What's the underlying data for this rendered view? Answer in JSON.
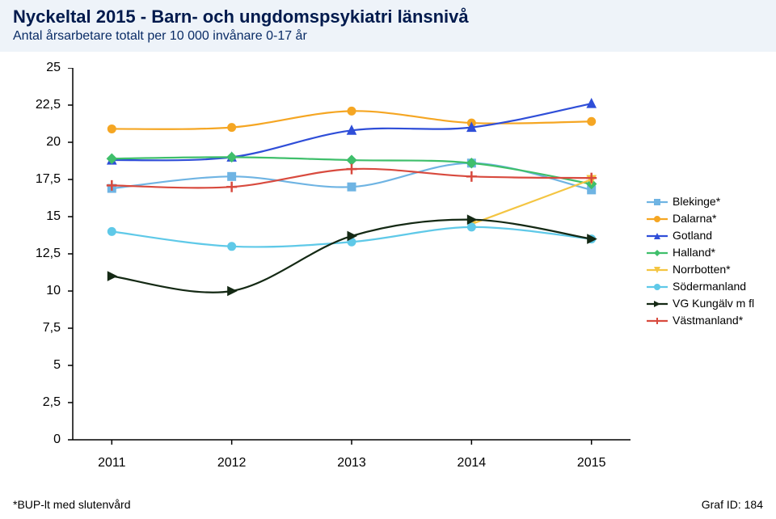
{
  "header": {
    "title": "Nyckeltal 2015 - Barn- och ungdomspsykiatri länsnivå",
    "subtitle": "Antal årsarbetare totalt per 10 000 invånare 0-17 år"
  },
  "chart": {
    "type": "line",
    "background_color": "#ffffff",
    "axis_color": "#000000",
    "tick_length": 6,
    "x": {
      "categories": [
        "2011",
        "2012",
        "2013",
        "2014",
        "2015"
      ],
      "label_fontsize": 16
    },
    "y": {
      "min": 0,
      "max": 25,
      "tick_step": 2.5,
      "labels": [
        "0",
        "2,5",
        "5",
        "7,5",
        "10",
        "12,5",
        "15",
        "17,5",
        "20",
        "22,5",
        "25"
      ],
      "label_fontsize": 16
    },
    "series": [
      {
        "name": "Blekinge*",
        "color": "#6fb4e3",
        "marker": "square",
        "values": [
          16.9,
          17.7,
          17.0,
          18.6,
          16.8
        ]
      },
      {
        "name": "Dalarna*",
        "color": "#f5a623",
        "marker": "circle",
        "values": [
          20.9,
          21.0,
          22.1,
          21.3,
          21.4
        ]
      },
      {
        "name": "Gotland",
        "color": "#2f4ed8",
        "marker": "triangle",
        "values": [
          18.8,
          19.0,
          20.8,
          21.0,
          22.6
        ]
      },
      {
        "name": "Halland*",
        "color": "#3fbf6b",
        "marker": "diamond",
        "values": [
          18.9,
          19.0,
          18.8,
          18.6,
          17.2
        ]
      },
      {
        "name": "Norrbotten*",
        "color": "#f4c542",
        "marker": "tri-down",
        "values": [
          null,
          null,
          null,
          14.5,
          17.5
        ]
      },
      {
        "name": "Södermanland",
        "color": "#5fc9e8",
        "marker": "circle",
        "values": [
          14.0,
          13.0,
          13.3,
          14.3,
          13.5
        ]
      },
      {
        "name": "VG Kungälv m fl",
        "color": "#142914",
        "marker": "tri-right",
        "values": [
          11.0,
          10.0,
          13.7,
          14.8,
          13.5
        ]
      },
      {
        "name": "Västmanland*",
        "color": "#d84a3e",
        "marker": "plus",
        "values": [
          17.1,
          17.0,
          18.2,
          17.7,
          17.6
        ]
      }
    ],
    "line_width": 2.2,
    "marker_size": 5
  },
  "legend": {
    "fontsize": 14
  },
  "footnotes": {
    "left": "*BUP-lt med slutenvård",
    "right": "Graf ID: 184"
  }
}
